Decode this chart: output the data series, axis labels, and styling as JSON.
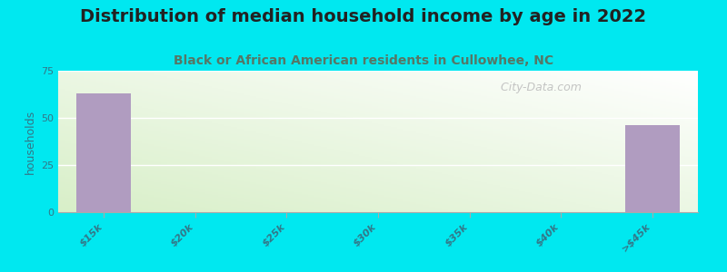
{
  "title": "Distribution of median household income by age in 2022",
  "subtitle": "Black or African American residents in Cullowhee, NC",
  "categories": [
    "$15k",
    "$20k",
    "$25k",
    "$30k",
    "$35k",
    "$40k",
    ">$45k"
  ],
  "values": [
    63,
    0,
    0,
    0,
    0,
    0,
    46
  ],
  "bar_color": "#b09cc0",
  "background_color": "#00e8f0",
  "ylabel": "households",
  "ylim": [
    0,
    75
  ],
  "yticks": [
    0,
    25,
    50,
    75
  ],
  "title_fontsize": 14,
  "subtitle_fontsize": 10,
  "tick_label_fontsize": 8,
  "ylabel_fontsize": 9,
  "bar_width": 0.6,
  "watermark": "  City-Data.com",
  "plot_color_topleft": "#e8f5e0",
  "plot_color_bottomright": "#f8fff8",
  "plot_color_white": "#ffffff"
}
